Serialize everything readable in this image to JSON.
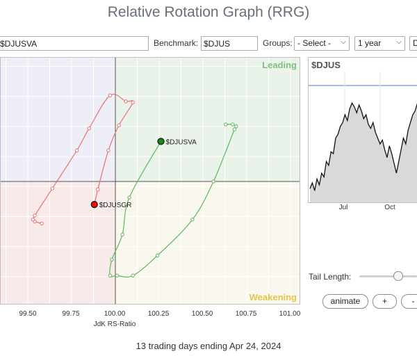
{
  "page": {
    "title": "Relative Rotation Graph (RRG)",
    "footer": "13 trading days ending Apr 24, 2024"
  },
  "toolbar": {
    "symbols_value": "$DJUSVA",
    "benchmark_label": "Benchmark:",
    "benchmark_value": "$DJUS",
    "groups_label": "Groups:",
    "groups_value": "- Select -",
    "period_value": "1 year",
    "extra_value": "D"
  },
  "rrg": {
    "quadrants": {
      "leading": "Leading",
      "weakening": "Weakening"
    },
    "xlabel": "JdK RS-Ratio",
    "xticks": [
      "99.50",
      "99.75",
      "100.00",
      "100.25",
      "100.50",
      "100.75",
      "101.00"
    ],
    "colors": {
      "green": "#3aa53a",
      "red": "#e05a5a"
    },
    "series": [
      {
        "name": "$DJUSVA",
        "color": "#5cb85c",
        "head_color": "#1a8a1a",
        "points": [
          [
            100.63,
            100.57
          ],
          [
            100.67,
            100.57
          ],
          [
            100.69,
            100.55
          ],
          [
            100.68,
            100.52
          ],
          [
            100.56,
            100.0
          ],
          [
            100.44,
            99.62
          ],
          [
            100.24,
            99.26
          ],
          [
            100.1,
            99.06
          ],
          [
            100.01,
            99.06
          ],
          [
            99.97,
            99.06
          ],
          [
            99.98,
            99.22
          ],
          [
            100.04,
            99.47
          ],
          [
            100.08,
            99.84
          ],
          [
            100.26,
            100.4
          ]
        ]
      },
      {
        "name": "$DJUSGR",
        "color": "#e87070",
        "head_color": "#e81010",
        "points": [
          [
            99.58,
            99.58
          ],
          [
            99.54,
            99.6
          ],
          [
            99.53,
            99.62
          ],
          [
            99.54,
            99.66
          ],
          [
            99.64,
            99.93
          ],
          [
            99.78,
            100.31
          ],
          [
            99.85,
            100.53
          ],
          [
            99.97,
            100.86
          ],
          [
            100.06,
            100.8
          ],
          [
            100.1,
            100.79
          ],
          [
            100.02,
            100.56
          ],
          [
            99.96,
            100.31
          ],
          [
            99.9,
            99.92
          ],
          [
            99.88,
            99.77
          ]
        ]
      }
    ]
  },
  "benchmark_chart": {
    "title": "$DJUS",
    "xticks": [
      "Jul",
      "Oct"
    ],
    "values": [
      32,
      35,
      31,
      37,
      34,
      40,
      38,
      46,
      44,
      51,
      50,
      58,
      60,
      64,
      66,
      70,
      67,
      73,
      76,
      74,
      71,
      75,
      72,
      68,
      70,
      65,
      63,
      66,
      61,
      58,
      55,
      57,
      52,
      48,
      54,
      50,
      45,
      40,
      46,
      52,
      58,
      55,
      62,
      66,
      70,
      72,
      76,
      74
    ]
  },
  "controls": {
    "tail_length_label": "Tail Length:",
    "tail_length_value": 0.8,
    "animate_label": "animate",
    "plus_label": "+",
    "minus_label": "-"
  }
}
